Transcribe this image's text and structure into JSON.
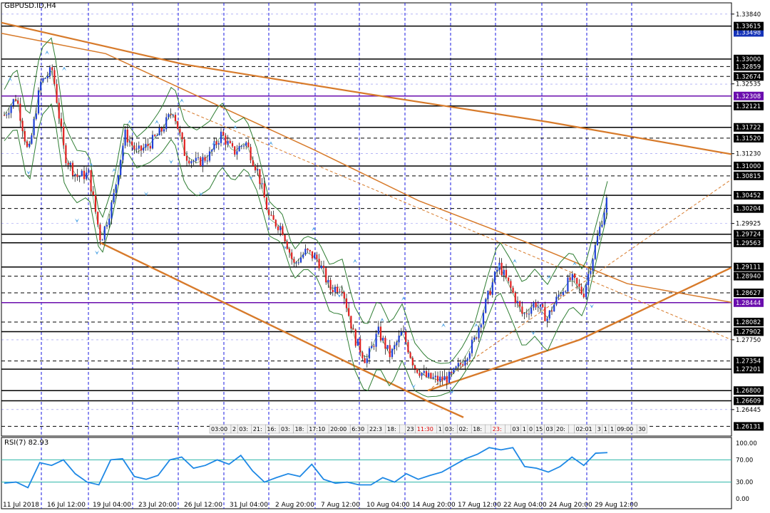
{
  "header": {
    "symbol": "GBPUSD.ID,H4"
  },
  "colors": {
    "bull": "#1f3fd6",
    "bear": "#e02020",
    "wick": "#000000",
    "band": "#2e7d32",
    "trend": "#d77a2a",
    "grid": "#1a1ae0",
    "level_black": "#000000",
    "level_purple": "#6a0dad",
    "rsi": "#1e88e5",
    "rsi_level": "#2bb5a8"
  },
  "chart_data": [
    {
      "type": "candlestick",
      "title": "GBPUSD.ID,H4",
      "ylim": [
        1.2595,
        1.3405
      ],
      "price_ticks": [
        "1.33840",
        "1.33498",
        "1.33615",
        "1.33000",
        "1.32859",
        "1.32674",
        "1.32535",
        "1.32308",
        "1.32121",
        "1.31722",
        "1.31520",
        "1.31230",
        "1.31000",
        "1.30815",
        "1.30452",
        "1.30204",
        "1.29925",
        "1.29724",
        "1.29563",
        "1.29111",
        "1.28940",
        "1.28627",
        "1.28444",
        "1.28082",
        "1.27902",
        "1.27750",
        "1.27354",
        "1.27201",
        "1.26800",
        "1.26609",
        "1.26445",
        "1.26131"
      ],
      "x_labels": [
        "11 Jul 2018",
        "16 Jul 12:00",
        "19 Jul 04:00",
        "23 Jul 20:00",
        "26 Jul 12:00",
        "31 Jul 04:00",
        "2 Aug 20:00",
        "7 Aug 12:00",
        "10 Aug 04:00",
        "14 Aug 20:00",
        "17 Aug 12:00",
        "22 Aug 04:00",
        "24 Aug 20:00",
        "29 Aug 12:00"
      ],
      "horizontal_levels": [
        {
          "price": 1.33615,
          "style": "solid",
          "color": "black"
        },
        {
          "price": 1.33,
          "style": "solid",
          "color": "black"
        },
        {
          "price": 1.32859,
          "style": "dashed",
          "color": "black"
        },
        {
          "price": 1.32674,
          "style": "dashed",
          "color": "black"
        },
        {
          "price": 1.32308,
          "style": "solid",
          "color": "purple"
        },
        {
          "price": 1.32121,
          "style": "solid",
          "color": "black"
        },
        {
          "price": 1.31722,
          "style": "solid",
          "color": "black"
        },
        {
          "price": 1.3152,
          "style": "dashed",
          "color": "black"
        },
        {
          "price": 1.31,
          "style": "solid",
          "color": "black"
        },
        {
          "price": 1.30815,
          "style": "dashed",
          "color": "black"
        },
        {
          "price": 1.30452,
          "style": "solid",
          "color": "black"
        },
        {
          "price": 1.30204,
          "style": "dashed",
          "color": "black"
        },
        {
          "price": 1.29724,
          "style": "solid",
          "color": "black"
        },
        {
          "price": 1.29563,
          "style": "solid",
          "color": "black"
        },
        {
          "price": 1.29111,
          "style": "solid",
          "color": "black"
        },
        {
          "price": 1.2894,
          "style": "dashed",
          "color": "black"
        },
        {
          "price": 1.28627,
          "style": "dashed",
          "color": "black"
        },
        {
          "price": 1.28444,
          "style": "solid",
          "color": "purple"
        },
        {
          "price": 1.28082,
          "style": "dashed",
          "color": "black"
        },
        {
          "price": 1.27902,
          "style": "solid",
          "color": "black"
        },
        {
          "price": 1.27354,
          "style": "dashed",
          "color": "black"
        },
        {
          "price": 1.27201,
          "style": "solid",
          "color": "black"
        },
        {
          "price": 1.268,
          "style": "solid",
          "color": "black"
        },
        {
          "price": 1.26609,
          "style": "solid",
          "color": "black"
        },
        {
          "price": 1.26131,
          "style": "dashed",
          "color": "black"
        }
      ],
      "highlighted_labels": [
        "1.33615",
        "1.33498",
        "1.33000",
        "1.32859",
        "1.32674",
        "1.32308",
        "1.32121",
        "1.31722",
        "1.31520",
        "1.31000",
        "1.30815",
        "1.30452",
        "1.30204",
        "1.29724",
        "1.29563",
        "1.29111",
        "1.28940",
        "1.28627",
        "1.28444",
        "1.28082",
        "1.27902",
        "1.27354",
        "1.27201",
        "1.26800",
        "1.26609",
        "1.26131"
      ],
      "close_path": [
        1.3195,
        1.323,
        1.312,
        1.3255,
        1.328,
        1.312,
        1.308,
        1.3085,
        1.296,
        1.3035,
        1.316,
        1.3125,
        1.314,
        1.3165,
        1.3205,
        1.312,
        1.3105,
        1.312,
        1.316,
        1.3125,
        1.3145,
        1.309,
        1.3,
        1.2985,
        1.2915,
        1.294,
        1.2925,
        1.287,
        1.2875,
        1.278,
        1.2735,
        1.279,
        1.2745,
        1.279,
        1.2725,
        1.2705,
        1.27,
        1.2705,
        1.2735,
        1.2775,
        1.285,
        1.2915,
        1.287,
        1.282,
        1.2845,
        1.2815,
        1.286,
        1.289,
        1.286,
        1.295,
        1.3042
      ],
      "top_trendline_points": [
        1.3368,
        1.329,
        1.3235,
        1.3182,
        1.3122
      ],
      "lower_trendline_points": [
        1.3348,
        1.331,
        1.322,
        1.313,
        1.3035,
        1.296,
        1.288,
        1.2845
      ],
      "support_line_points": [
        1.2957,
        1.266,
        1.263
      ],
      "rising_line_points": [
        1.268,
        1.2775,
        1.291
      ],
      "fan_lines_dashed": [
        {
          "from": 1.321,
          "to": 1.2775
        },
        {
          "from": 1.268,
          "to": 1.3075
        }
      ]
    },
    {
      "type": "line",
      "title": "RSI(7) 82.93",
      "name": "RSI(7)",
      "current": 82.93,
      "ylim": [
        0,
        100
      ],
      "ticks": [
        "100.00",
        "70.00",
        "30.00",
        "0.00"
      ],
      "levels": [
        70,
        30
      ],
      "values": [
        28,
        30,
        20,
        65,
        60,
        70,
        45,
        30,
        25,
        70,
        72,
        40,
        35,
        42,
        70,
        75,
        55,
        60,
        70,
        62,
        78,
        50,
        30,
        38,
        45,
        40,
        62,
        35,
        28,
        30,
        25,
        25,
        38,
        30,
        45,
        35,
        42,
        48,
        60,
        72,
        80,
        92,
        88,
        92,
        58,
        55,
        48,
        58,
        75,
        60,
        82,
        83
      ]
    }
  ],
  "time_strip": [
    "03:00",
    "2",
    "03:",
    "21:",
    "16:",
    "03:",
    "18:",
    "17:10",
    "20:00",
    "6:30",
    "22:3",
    "18:",
    "",
    "23",
    "11:30",
    "1",
    "03:",
    "02:",
    "18:",
    "",
    "23:",
    "",
    "03",
    "1",
    "0",
    "15",
    "03",
    "20:",
    "",
    "02:01",
    "3",
    "1",
    "1",
    "09:00",
    "30"
  ]
}
